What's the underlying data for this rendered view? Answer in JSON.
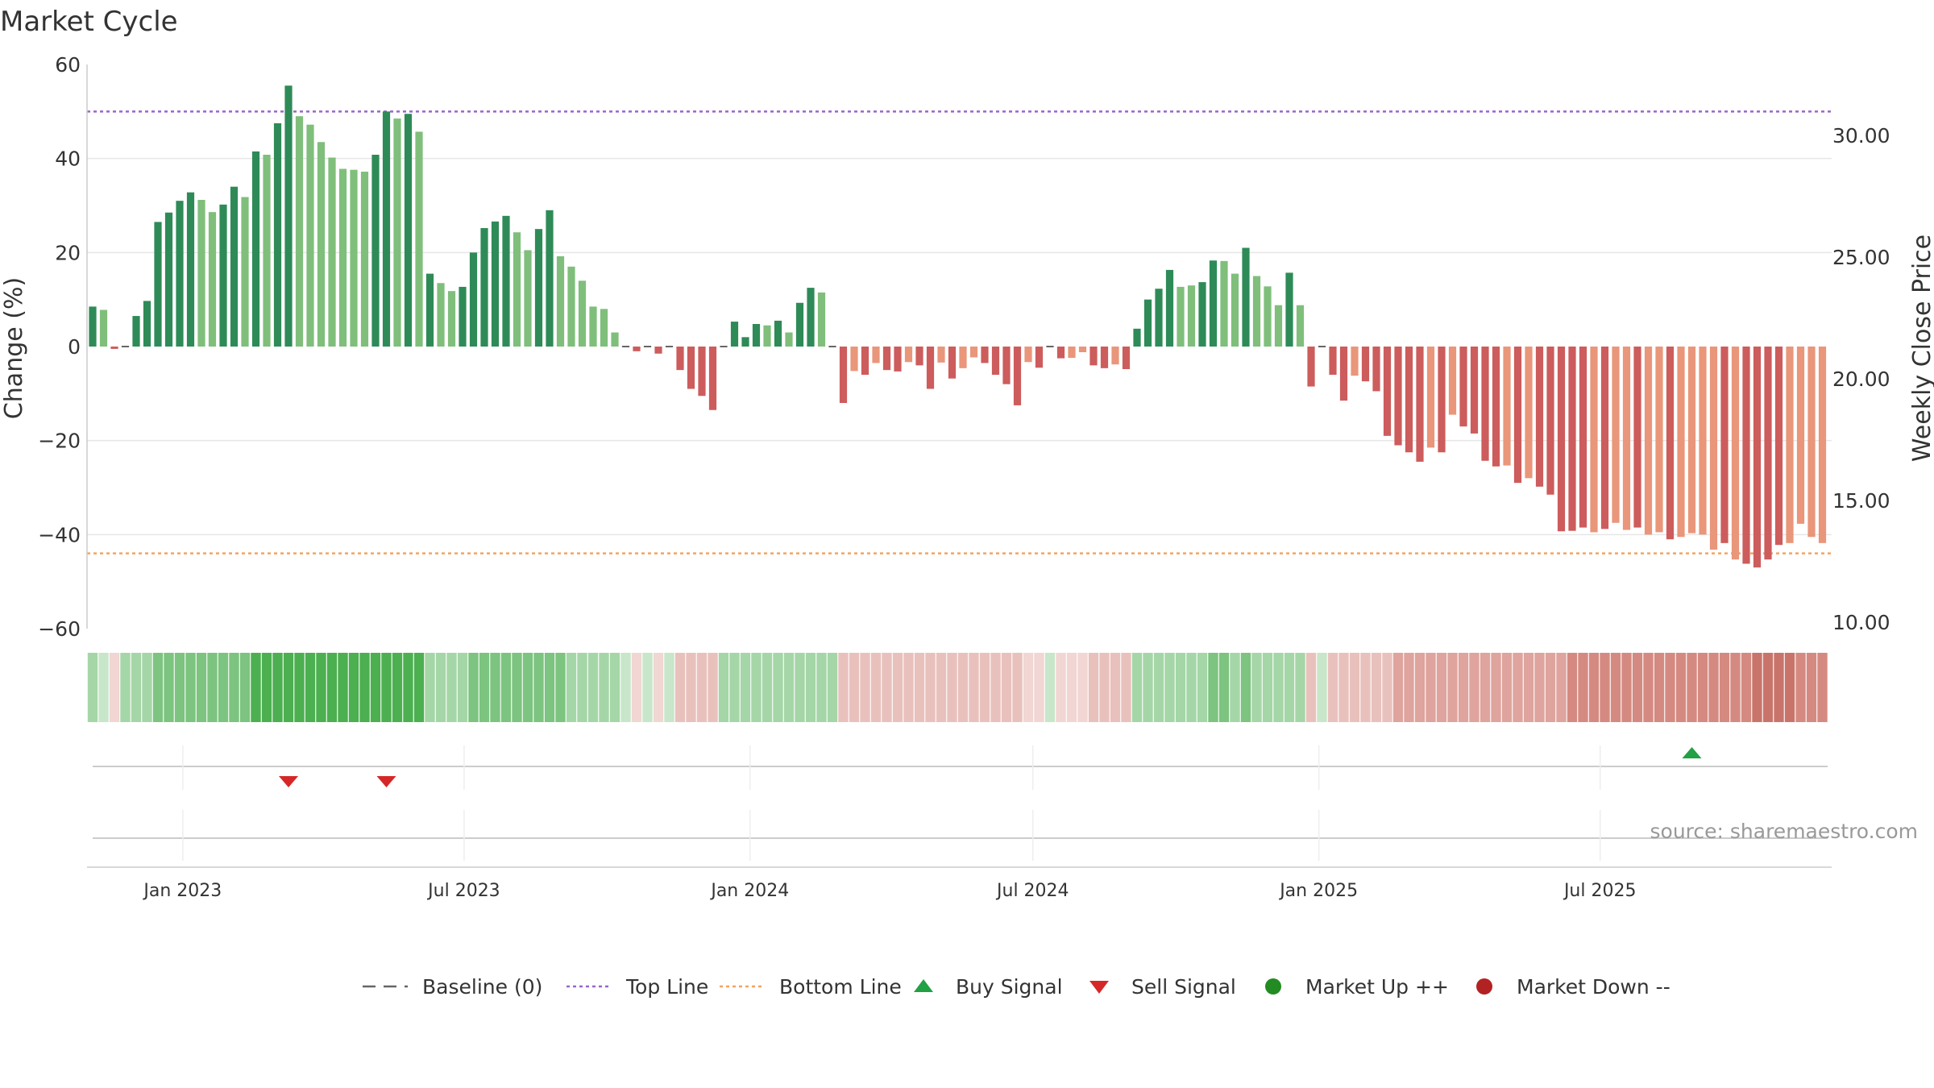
{
  "chart_data": {
    "type": "bar",
    "title": "Market Cycle",
    "ylabel": "Change (%)",
    "y2label": "Weekly Close Price",
    "ylim": [
      -60,
      60
    ],
    "y2lim": [
      10,
      32
    ],
    "y_ticks": [
      60,
      40,
      20,
      0,
      -20,
      -40,
      -60
    ],
    "y_tick_labels": [
      "60",
      "40",
      "20",
      "0",
      "−20",
      "−40",
      "−60"
    ],
    "y2_ticks": [
      30,
      25,
      20,
      15,
      10
    ],
    "y2_tick_labels": [
      "30.00",
      "25.00",
      "20.00",
      "15.00",
      "10.00"
    ],
    "top_line": 50,
    "bottom_line": -44,
    "baseline": 0,
    "grid": true,
    "x_ticks": [
      "Jan 2023",
      "Jul 2023",
      "Jan 2024",
      "Jul 2024",
      "Jan 2025",
      "Jul 2025"
    ],
    "x_tick_dates": [
      "2023-01-01",
      "2023-07-01",
      "2024-01-01",
      "2024-07-01",
      "2025-01-01",
      "2025-07-01"
    ],
    "start_date": "2022-11-04",
    "week_step_days": 7,
    "values": [
      8.5,
      7.8,
      -0.5,
      0,
      6.5,
      9.7,
      26.5,
      28.5,
      31,
      32.8,
      31.2,
      28.6,
      30.2,
      34,
      31.8,
      41.5,
      40.8,
      47.5,
      55.5,
      49,
      47.2,
      43.5,
      40.2,
      37.8,
      37.6,
      37.2,
      40.8,
      50,
      48.5,
      49.5,
      45.7,
      15.5,
      13.5,
      11.8,
      12.7,
      20,
      25.2,
      26.6,
      27.8,
      24.3,
      20.5,
      25,
      29,
      19.2,
      17,
      14,
      8.5,
      8,
      3,
      0,
      -1,
      0,
      -1.5,
      0,
      -5,
      -9,
      -10.5,
      -13.5,
      0,
      5.3,
      2,
      4.8,
      4.5,
      5.5,
      3,
      9.3,
      12.5,
      11.5,
      0,
      -12,
      -5.2,
      -6,
      -3.5,
      -5,
      -5.3,
      -3.3,
      -4,
      -9,
      -3.4,
      -6.8,
      -4.6,
      -2.3,
      -3.5,
      -6,
      -8,
      -12.5,
      -3.3,
      -4.5,
      0,
      -2.5,
      -2.4,
      -1.2,
      -4,
      -4.6,
      -3.8,
      -4.8,
      3.8,
      10,
      12.3,
      16.3,
      12.7,
      13,
      13.7,
      18.3,
      18.2,
      15.5,
      21,
      15,
      12.8,
      8.8,
      15.7,
      8.8,
      -8.5,
      0,
      -6,
      -11.5,
      -6.2,
      -7.4,
      -9.5,
      -19,
      -21,
      -22.5,
      -24.5,
      -21.5,
      -22.5,
      -14.5,
      -17,
      -18.5,
      -24.3,
      -25.5,
      -25.3,
      -29,
      -28,
      -29.8,
      -31.5,
      -39.3,
      -39.2,
      -38.5,
      -39.5,
      -38.8,
      -37.5,
      -39,
      -38.5,
      -40,
      -39.5,
      -41,
      -40.5,
      -39.7,
      -40,
      -43.2,
      -41.8,
      -45.3,
      -46.2,
      -47,
      -45.3,
      -42.2,
      -41.8,
      -37.7,
      -40.5,
      -41.8
    ],
    "shades": [
      1,
      2,
      0,
      0,
      1,
      1,
      1,
      1,
      1,
      1,
      2,
      2,
      1,
      1,
      2,
      1,
      2,
      1,
      1,
      2,
      2,
      2,
      2,
      2,
      2,
      2,
      1,
      1,
      2,
      1,
      2,
      1,
      2,
      2,
      1,
      1,
      1,
      1,
      1,
      2,
      2,
      1,
      1,
      2,
      2,
      2,
      2,
      2,
      2,
      0,
      0,
      0,
      0,
      0,
      1,
      1,
      1,
      1,
      0,
      1,
      1,
      1,
      2,
      1,
      2,
      1,
      1,
      2,
      0,
      1,
      2,
      1,
      2,
      1,
      1,
      2,
      1,
      1,
      2,
      1,
      2,
      2,
      1,
      1,
      1,
      1,
      2,
      1,
      0,
      1,
      2,
      2,
      1,
      1,
      2,
      1,
      1,
      1,
      1,
      1,
      2,
      2,
      1,
      1,
      2,
      2,
      1,
      2,
      2,
      2,
      1,
      2,
      1,
      0,
      1,
      1,
      2,
      1,
      1,
      1,
      1,
      1,
      1,
      2,
      1,
      2,
      1,
      1,
      1,
      1,
      2,
      1,
      2,
      1,
      1,
      1,
      1,
      1,
      2,
      1,
      2,
      2,
      1,
      2,
      2,
      1,
      2,
      2,
      2,
      2,
      1,
      2,
      1,
      1,
      1,
      1,
      2,
      2,
      2,
      2,
      1
    ],
    "heat_levels": [
      1,
      0,
      0,
      1,
      1,
      1,
      2,
      2,
      2,
      2,
      2,
      2,
      2,
      2,
      2,
      3,
      3,
      3,
      3,
      3,
      3,
      3,
      3,
      3,
      3,
      3,
      3,
      3,
      3,
      3,
      3,
      1,
      1,
      1,
      1,
      2,
      2,
      2,
      2,
      2,
      2,
      2,
      2,
      2,
      1,
      1,
      1,
      1,
      1,
      0,
      0,
      0,
      0,
      0,
      1,
      1,
      1,
      1,
      1,
      1,
      1,
      1,
      1,
      1,
      1,
      1,
      1,
      1,
      1,
      1,
      1,
      1,
      1,
      1,
      1,
      1,
      1,
      1,
      1,
      1,
      1,
      1,
      1,
      1,
      1,
      1,
      0,
      0,
      0,
      0,
      0,
      0,
      1,
      1,
      1,
      1,
      1,
      1,
      1,
      1,
      1,
      1,
      1,
      2,
      2,
      1,
      2,
      1,
      1,
      1,
      1,
      1,
      1,
      0,
      1,
      1,
      1,
      1,
      1,
      1,
      2,
      2,
      2,
      2,
      2,
      2,
      2,
      2,
      2,
      2,
      2,
      2,
      2,
      2,
      2,
      2,
      3,
      3,
      3,
      3,
      3,
      3,
      3,
      3,
      3,
      3,
      3,
      3,
      3,
      3,
      3,
      3,
      3,
      4,
      4,
      4,
      4,
      3,
      3,
      3,
      3
    ],
    "buy_signals": [
      147
    ],
    "sell_signals": [
      18,
      27
    ],
    "colors": {
      "up_dark": "#2e8b57",
      "up_light": "#7fbf7b",
      "down_dark": "#cd5c5c",
      "down_light": "#e9967a",
      "baseline": "#666666",
      "top_line": "#9966cc",
      "bottom_line": "#f4a460",
      "buy": "#22a045",
      "sell": "#d62728",
      "market_up": "#228b22",
      "market_down": "#b22222",
      "heat_up": [
        "#c8e6c9",
        "#a5d6a7",
        "#7cc47f",
        "#4caf50",
        "#3a9a47"
      ],
      "heat_down": [
        "#f1d6d4",
        "#e9c1bc",
        "#dea49d",
        "#d58a81",
        "#c9746b"
      ]
    },
    "legend": {
      "placement": "bottom",
      "items": [
        {
          "key": "baseline",
          "label": "Baseline (0)",
          "icon": "dashed-line"
        },
        {
          "key": "top",
          "label": "Top Line",
          "icon": "dotted-line"
        },
        {
          "key": "bottom",
          "label": "Bottom Line",
          "icon": "dotted-line"
        },
        {
          "key": "buy",
          "label": "Buy Signal",
          "icon": "triangle-up"
        },
        {
          "key": "sell",
          "label": "Sell Signal",
          "icon": "triangle-down"
        },
        {
          "key": "mup",
          "label": "Market Up ++",
          "icon": "circle"
        },
        {
          "key": "mdown",
          "label": "Market Down --",
          "icon": "circle"
        }
      ]
    }
  },
  "source": "source: sharemaestro.com"
}
